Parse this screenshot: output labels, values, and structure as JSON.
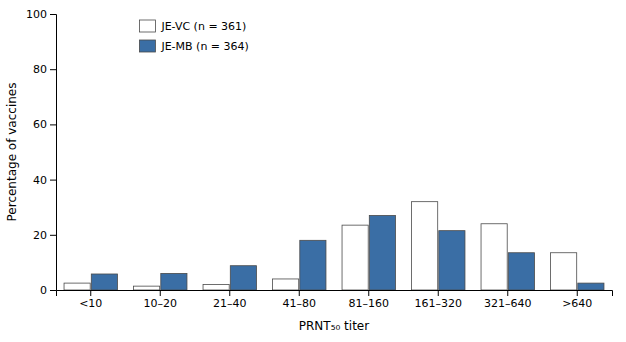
{
  "chart_data": {
    "type": "bar",
    "categories": [
      "<10",
      "10–20",
      "21–40",
      "41–80",
      "81–160",
      "161–320",
      "321–640",
      ">640"
    ],
    "series": [
      {
        "name": "JE-VC (n = 361)",
        "color": "#ffffff",
        "values": [
          2.5,
          1.4,
          2.0,
          4.0,
          23.5,
          32.0,
          24.0,
          13.5
        ]
      },
      {
        "name": "JE-MB (n = 364)",
        "color": "#3a6ea5",
        "values": [
          5.8,
          6.0,
          8.8,
          18.0,
          27.0,
          21.5,
          13.5,
          2.5
        ]
      }
    ],
    "xlabel": "PRNT₅₀ titer",
    "ylabel": "Percentage of vaccines",
    "ylim": [
      0,
      100
    ],
    "yticks": [
      0,
      20,
      40,
      60,
      80,
      100
    ],
    "grid": false,
    "legend": "upper left"
  }
}
